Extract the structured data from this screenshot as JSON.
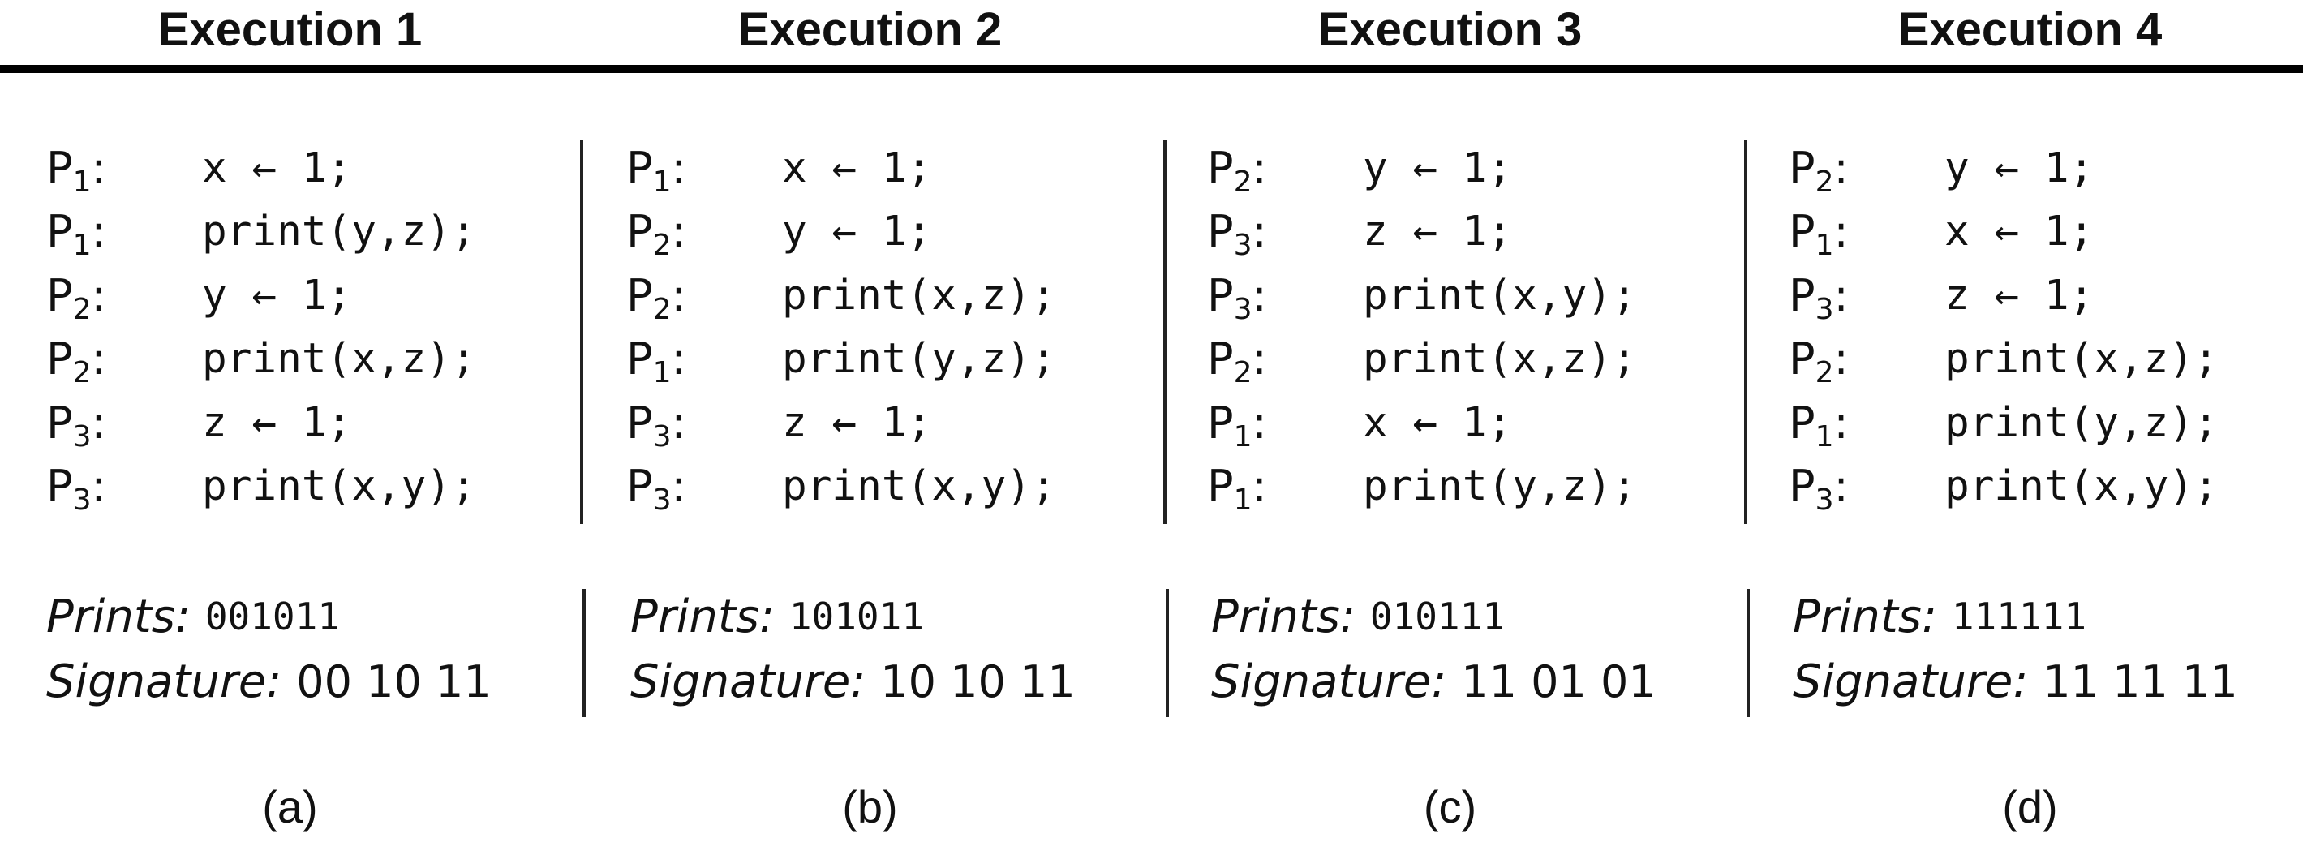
{
  "executions": [
    {
      "title": "Execution 1",
      "steps": [
        {
          "proc": "P",
          "sub": "1",
          "code": "x ← 1;"
        },
        {
          "proc": "P",
          "sub": "1",
          "code": "print(y,z);"
        },
        {
          "proc": "P",
          "sub": "2",
          "code": "y ← 1;"
        },
        {
          "proc": "P",
          "sub": "2",
          "code": "print(x,z);"
        },
        {
          "proc": "P",
          "sub": "3",
          "code": "z ← 1;"
        },
        {
          "proc": "P",
          "sub": "3",
          "code": "print(x,y);"
        }
      ],
      "prints_label": "Prints:",
      "prints": "001011",
      "signature_label": "Signature:",
      "signature": "00 10 11",
      "caption": "(a)"
    },
    {
      "title": "Execution 2",
      "steps": [
        {
          "proc": "P",
          "sub": "1",
          "code": "x ← 1;"
        },
        {
          "proc": "P",
          "sub": "2",
          "code": "y ← 1;"
        },
        {
          "proc": "P",
          "sub": "2",
          "code": "print(x,z);"
        },
        {
          "proc": "P",
          "sub": "1",
          "code": "print(y,z);"
        },
        {
          "proc": "P",
          "sub": "3",
          "code": "z ← 1;"
        },
        {
          "proc": "P",
          "sub": "3",
          "code": "print(x,y);"
        }
      ],
      "prints_label": "Prints:",
      "prints": "101011",
      "signature_label": "Signature:",
      "signature": "10 10 11",
      "caption": "(b)"
    },
    {
      "title": "Execution 3",
      "steps": [
        {
          "proc": "P",
          "sub": "2",
          "code": "y ← 1;"
        },
        {
          "proc": "P",
          "sub": "3",
          "code": "z ← 1;"
        },
        {
          "proc": "P",
          "sub": "3",
          "code": "print(x,y);"
        },
        {
          "proc": "P",
          "sub": "2",
          "code": "print(x,z);"
        },
        {
          "proc": "P",
          "sub": "1",
          "code": "x ← 1;"
        },
        {
          "proc": "P",
          "sub": "1",
          "code": "print(y,z);"
        }
      ],
      "prints_label": "Prints:",
      "prints": "010111",
      "signature_label": "Signature:",
      "signature": "11 01 01",
      "caption": "(c)"
    },
    {
      "title": "Execution 4",
      "steps": [
        {
          "proc": "P",
          "sub": "2",
          "code": "y ← 1;"
        },
        {
          "proc": "P",
          "sub": "1",
          "code": "x ← 1;"
        },
        {
          "proc": "P",
          "sub": "3",
          "code": "z ← 1;"
        },
        {
          "proc": "P",
          "sub": "2",
          "code": "print(x,z);"
        },
        {
          "proc": "P",
          "sub": "1",
          "code": "print(y,z);"
        },
        {
          "proc": "P",
          "sub": "3",
          "code": "print(x,y);"
        }
      ],
      "prints_label": "Prints:",
      "prints": "111111",
      "signature_label": "Signature:",
      "signature": "11 11 11",
      "caption": "(d)"
    }
  ]
}
